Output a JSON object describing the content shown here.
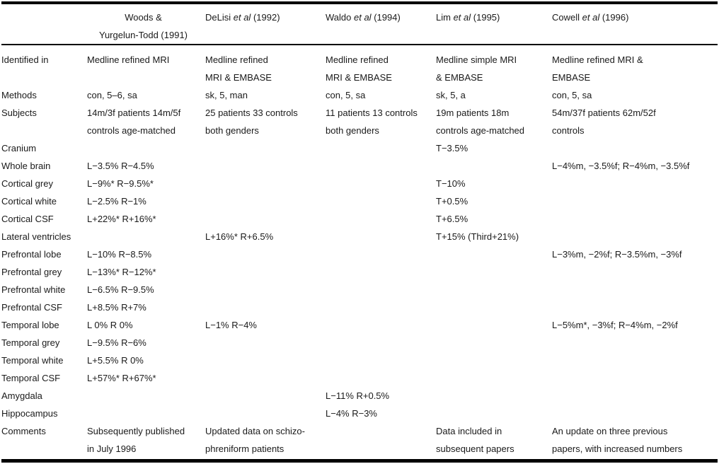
{
  "colors": {
    "background": "#ffffff",
    "text": "#1a1a1a",
    "rule": "#000000"
  },
  "table": {
    "columns": [
      {
        "label": "Woods &\nYurgelun-Todd (1991)"
      },
      {
        "author": "DeLisi",
        "etal": "et al",
        "year": "(1992)"
      },
      {
        "author": "Waldo",
        "etal": "et al",
        "year": "(1994)"
      },
      {
        "author": "Lim",
        "etal": "et al",
        "year": "(1995)"
      },
      {
        "author": "Cowell",
        "etal": "et al",
        "year": "(1996)"
      }
    ],
    "rows": [
      {
        "label": "Identified in",
        "cells": [
          "Medline refined MRI",
          "Medline refined\nMRI & EMBASE",
          "Medline refined\nMRI & EMBASE",
          "Medline simple MRI\n& EMBASE",
          "Medline refined MRI &\nEMBASE"
        ]
      },
      {
        "label": "Methods",
        "cells": [
          "con, 5–6, sa",
          "sk, 5, man",
          "con, 5, sa",
          "sk, 5, a",
          "con, 5, sa"
        ]
      },
      {
        "label": "Subjects",
        "cells": [
          "14m/3f patients 14m/5f\ncontrols age-matched",
          "25 patients 33 controls\nboth genders",
          "11 patients 13 controls\nboth genders",
          "19m patients 18m\ncontrols age-matched",
          "54m/37f patients 62m/52f\ncontrols"
        ]
      },
      {
        "label": "Cranium",
        "cells": [
          "",
          "",
          "",
          "T−3.5%",
          ""
        ]
      },
      {
        "label": "Whole brain",
        "cells": [
          "L−3.5% R−4.5%",
          "",
          "",
          "",
          "L−4%m, −3.5%f; R−4%m, −3.5%f"
        ]
      },
      {
        "label": "Cortical grey",
        "cells": [
          "L−9%* R−9.5%*",
          "",
          "",
          "T−10%",
          ""
        ]
      },
      {
        "label": "Cortical white",
        "cells": [
          "L−2.5% R−1%",
          "",
          "",
          "T+0.5%",
          ""
        ]
      },
      {
        "label": "Cortical CSF",
        "cells": [
          "L+22%* R+16%*",
          "",
          "",
          "T+6.5%",
          ""
        ]
      },
      {
        "label": "Lateral ventricles",
        "cells": [
          "",
          "L+16%* R+6.5%",
          "",
          "T+15% (Third+21%)",
          ""
        ]
      },
      {
        "label": "Prefrontal lobe",
        "cells": [
          "L−10% R−8.5%",
          "",
          "",
          "",
          "L−3%m, −2%f; R−3.5%m, −3%f"
        ]
      },
      {
        "label": "Prefrontal grey",
        "cells": [
          "L−13%* R−12%*",
          "",
          "",
          "",
          ""
        ]
      },
      {
        "label": "Prefrontal white",
        "cells": [
          "L−6.5% R−9.5%",
          "",
          "",
          "",
          ""
        ]
      },
      {
        "label": "Prefrontal CSF",
        "cells": [
          "L+8.5% R+7%",
          "",
          "",
          "",
          ""
        ]
      },
      {
        "label": "Temporal lobe",
        "cells": [
          "L 0% R 0%",
          "L−1% R−4%",
          "",
          "",
          "L−5%m*, −3%f; R−4%m, −2%f"
        ]
      },
      {
        "label": "Temporal grey",
        "cells": [
          "L−9.5% R−6%",
          "",
          "",
          "",
          ""
        ]
      },
      {
        "label": "Temporal white",
        "cells": [
          "L+5.5% R 0%",
          "",
          "",
          "",
          ""
        ]
      },
      {
        "label": "Temporal CSF",
        "cells": [
          "L+57%* R+67%*",
          "",
          "",
          "",
          ""
        ]
      },
      {
        "label": "Amygdala",
        "cells": [
          "",
          "",
          "L−11% R+0.5%",
          "",
          ""
        ]
      },
      {
        "label": "Hippocampus",
        "cells": [
          "",
          "",
          "L−4% R−3%",
          "",
          ""
        ]
      },
      {
        "label": "Comments",
        "cells": [
          "Subsequently published\nin July 1996",
          "Updated data on schizo-\nphreniform patients",
          "",
          "Data included in\nsubsequent papers",
          "An update on three previous\npapers, with increased numbers"
        ]
      }
    ]
  }
}
